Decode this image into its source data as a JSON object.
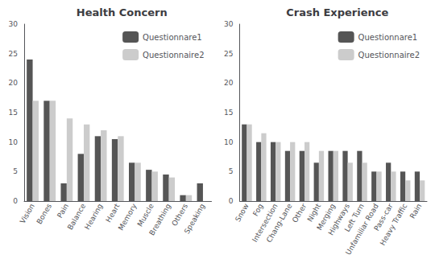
{
  "chart_data": [
    {
      "type": "bar",
      "title": "Health Concern",
      "categories": [
        "Vision",
        "Bones",
        "Pain",
        "Balance",
        "Hearing",
        "Heart",
        "Memory",
        "Muscle",
        "Breathing",
        "Others",
        "Speaking"
      ],
      "series": [
        {
          "name": "Questionnare1",
          "color": "#555555",
          "values": [
            24,
            17,
            3,
            8,
            11,
            10.5,
            6.5,
            5.3,
            4.5,
            1,
            3
          ]
        },
        {
          "name": "Questionnaire2",
          "color": "#cccccc",
          "values": [
            17,
            17,
            14,
            13,
            12,
            11,
            6.5,
            5,
            4,
            1,
            0
          ]
        }
      ],
      "ylim": [
        0,
        30
      ],
      "yticks": [
        0,
        5,
        10,
        15,
        20,
        25,
        30
      ],
      "grid": false,
      "legend": "upper right"
    },
    {
      "type": "bar",
      "title": "Crash Experience",
      "categories": [
        "Snow",
        "Fog",
        "Intersection",
        "Chang-Lane",
        "Other",
        "Night",
        "Merging",
        "Highways",
        "Left Turn",
        "Unfamiliar Road",
        "Pass-car",
        "Heavy Traffic",
        "Rain"
      ],
      "series": [
        {
          "name": "Questionnare1",
          "color": "#555555",
          "values": [
            13,
            10,
            10,
            8.5,
            8.5,
            6.5,
            8.5,
            8.5,
            8.5,
            5,
            6.5,
            5,
            5
          ]
        },
        {
          "name": "Questionnaire2",
          "color": "#cccccc",
          "values": [
            13,
            11.5,
            10,
            10,
            10,
            8.5,
            8.5,
            6.5,
            6.5,
            5,
            5,
            3.5,
            3.5
          ]
        }
      ],
      "ylim": [
        0,
        30
      ],
      "yticks": [
        0,
        5,
        10,
        15,
        20,
        25,
        30
      ],
      "grid": false,
      "legend": "upper right"
    }
  ]
}
